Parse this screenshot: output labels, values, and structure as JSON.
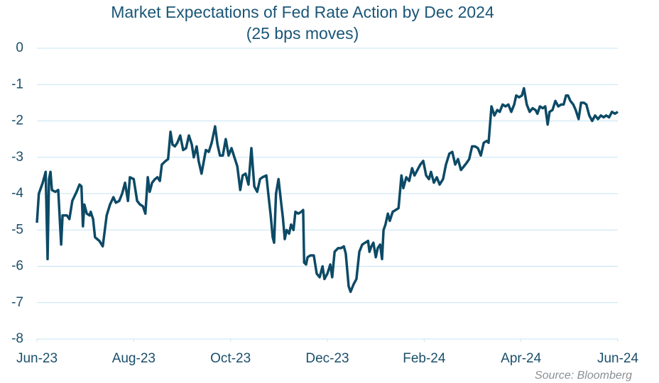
{
  "chart_data": {
    "type": "line",
    "title": "Market Expectations of Fed Rate Action by Dec 2024",
    "subtitle": "(25 bps moves)",
    "source": "Source: Bloomberg",
    "x": [
      0.0,
      0.04,
      0.12,
      0.18,
      0.22,
      0.25,
      0.28,
      0.31,
      0.38,
      0.44,
      0.5,
      0.53,
      0.62,
      0.67,
      0.73,
      0.82,
      0.88,
      0.92,
      0.95,
      0.98,
      1.03,
      1.09,
      1.11,
      1.16,
      1.2,
      1.29,
      1.36,
      1.44,
      1.51,
      1.58,
      1.63,
      1.7,
      1.76,
      1.82,
      1.88,
      1.92,
      2.0,
      2.07,
      2.13,
      2.19,
      2.24,
      2.29,
      2.33,
      2.38,
      2.44,
      2.49,
      2.54,
      2.58,
      2.66,
      2.71,
      2.76,
      2.8,
      2.85,
      2.9,
      2.96,
      3.02,
      3.08,
      3.14,
      3.2,
      3.24,
      3.3,
      3.34,
      3.4,
      3.49,
      3.55,
      3.61,
      3.68,
      3.73,
      3.78,
      3.84,
      3.9,
      3.96,
      4.02,
      4.08,
      4.14,
      4.2,
      4.25,
      4.31,
      4.37,
      4.43,
      4.49,
      4.55,
      4.61,
      4.66,
      4.74,
      4.78,
      4.83,
      4.87,
      4.9,
      4.94,
      4.99,
      5.05,
      5.08,
      5.12,
      5.16,
      5.21,
      5.25,
      5.3,
      5.34,
      5.4,
      5.46,
      5.5,
      5.52,
      5.56,
      5.59,
      5.65,
      5.72,
      5.78,
      5.84,
      5.9,
      5.94,
      6.0,
      6.06,
      6.1,
      6.15,
      6.22,
      6.28,
      6.34,
      6.38,
      6.44,
      6.48,
      6.54,
      6.6,
      6.66,
      6.72,
      6.78,
      6.84,
      6.87,
      6.91,
      6.95,
      7.0,
      7.04,
      7.09,
      7.13,
      7.16,
      7.2,
      7.25,
      7.29,
      7.35,
      7.41,
      7.47,
      7.53,
      7.57,
      7.63,
      7.69,
      7.75,
      7.8,
      7.86,
      7.92,
      7.98,
      8.04,
      8.1,
      8.14,
      8.2,
      8.26,
      8.32,
      8.39,
      8.45,
      8.52,
      8.58,
      8.64,
      8.7,
      8.76,
      8.82,
      8.88,
      8.93,
      8.99,
      9.05,
      9.11,
      9.17,
      9.23,
      9.29,
      9.33,
      9.39,
      9.45,
      9.51,
      9.56,
      9.62,
      9.68,
      9.74,
      9.8,
      9.86,
      9.9,
      9.96,
      10.02,
      10.06,
      10.12,
      10.18,
      10.24,
      10.3,
      10.34,
      10.39,
      10.45,
      10.5,
      10.55,
      10.59,
      10.65,
      10.71,
      10.77,
      10.83,
      10.88,
      10.93,
      10.97,
      11.02,
      11.08,
      11.13,
      11.19,
      11.24,
      11.3,
      11.35,
      11.41,
      11.47,
      11.53,
      11.59,
      11.65,
      11.71,
      11.76,
      11.82,
      11.88,
      11.94,
      12.0
    ],
    "series": [
      {
        "color": "#0d4a66",
        "values": [
          -4.8,
          -4.0,
          -3.7,
          -3.4,
          -5.8,
          -3.6,
          -3.4,
          -3.9,
          -3.95,
          -3.9,
          -5.4,
          -4.6,
          -4.6,
          -4.7,
          -4.2,
          -3.95,
          -3.75,
          -3.8,
          -4.9,
          -4.3,
          -4.55,
          -4.6,
          -4.5,
          -4.7,
          -5.2,
          -5.3,
          -5.45,
          -4.6,
          -4.3,
          -4.1,
          -4.25,
          -4.2,
          -4.0,
          -3.7,
          -4.2,
          -3.55,
          -3.6,
          -4.2,
          -4.3,
          -4.35,
          -4.55,
          -3.55,
          -3.95,
          -3.7,
          -3.6,
          -3.55,
          -3.65,
          -3.2,
          -3.1,
          -3.05,
          -2.3,
          -2.65,
          -2.7,
          -2.6,
          -2.4,
          -2.8,
          -2.75,
          -2.4,
          -2.65,
          -3.0,
          -2.7,
          -3.1,
          -3.45,
          -2.8,
          -2.85,
          -2.6,
          -2.15,
          -2.65,
          -2.95,
          -2.95,
          -2.5,
          -2.95,
          -2.75,
          -3.0,
          -3.25,
          -3.9,
          -3.5,
          -3.45,
          -3.75,
          -2.75,
          -3.8,
          -3.95,
          -3.6,
          -3.55,
          -3.5,
          -4.0,
          -4.6,
          -5.2,
          -5.35,
          -4.0,
          -3.6,
          -4.3,
          -4.65,
          -5.25,
          -5.0,
          -5.1,
          -4.85,
          -5.0,
          -4.5,
          -4.55,
          -4.5,
          -4.45,
          -5.9,
          -5.95,
          -5.75,
          -5.7,
          -5.7,
          -6.2,
          -6.3,
          -6.0,
          -6.35,
          -6.2,
          -5.95,
          -6.3,
          -5.6,
          -5.5,
          -5.5,
          -5.45,
          -5.65,
          -6.55,
          -6.7,
          -6.5,
          -6.35,
          -5.6,
          -5.4,
          -5.35,
          -5.3,
          -5.6,
          -5.45,
          -5.35,
          -5.75,
          -5.5,
          -5.4,
          -5.8,
          -5.0,
          -4.85,
          -4.55,
          -4.75,
          -4.5,
          -4.45,
          -4.4,
          -3.5,
          -3.85,
          -3.55,
          -3.65,
          -3.3,
          -3.5,
          -3.35,
          -3.2,
          -3.1,
          -3.5,
          -3.6,
          -3.4,
          -3.7,
          -3.55,
          -3.75,
          -3.6,
          -3.2,
          -2.9,
          -2.85,
          -3.2,
          -3.05,
          -3.35,
          -3.25,
          -3.15,
          -3.05,
          -2.7,
          -2.7,
          -2.75,
          -2.95,
          -2.6,
          -2.55,
          -2.6,
          -1.6,
          -1.85,
          -1.7,
          -1.75,
          -1.55,
          -1.6,
          -1.55,
          -1.75,
          -1.55,
          -1.3,
          -1.35,
          -1.3,
          -1.1,
          -1.55,
          -1.75,
          -1.65,
          -1.7,
          -1.8,
          -1.6,
          -1.65,
          -1.6,
          -2.1,
          -1.75,
          -1.7,
          -1.45,
          -1.6,
          -1.55,
          -1.55,
          -1.3,
          -1.3,
          -1.45,
          -1.55,
          -1.7,
          -1.95,
          -1.5,
          -1.5,
          -1.55,
          -1.85,
          -2.0,
          -1.85,
          -1.95,
          -1.85,
          -1.9,
          -1.85,
          -1.9,
          -1.75,
          -1.8,
          -1.75
        ]
      }
    ],
    "xlim": [
      0,
      12
    ],
    "xticks": [
      {
        "value": 0,
        "label": "Jun-23"
      },
      {
        "value": 2,
        "label": "Aug-23"
      },
      {
        "value": 4,
        "label": "Oct-23"
      },
      {
        "value": 6,
        "label": "Dec-23"
      },
      {
        "value": 8,
        "label": "Feb-24"
      },
      {
        "value": 10,
        "label": "Apr-24"
      },
      {
        "value": 12,
        "label": "Jun-24"
      }
    ],
    "ylim": [
      -8,
      0
    ],
    "yticks": [
      0,
      -1,
      -2,
      -3,
      -4,
      -5,
      -6,
      -7,
      -8
    ],
    "grid": true
  }
}
